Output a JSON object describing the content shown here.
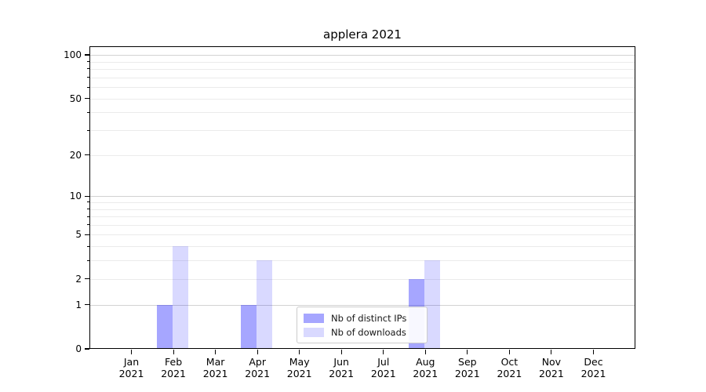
{
  "title": "applera 2021",
  "chart_data": {
    "type": "bar",
    "title": "applera 2021",
    "xlabel": "",
    "ylabel": "",
    "y_scale": "log1p",
    "ylim": [
      0,
      116
    ],
    "year_label": "2021",
    "categories": [
      "Jan",
      "Feb",
      "Mar",
      "Apr",
      "May",
      "Jun",
      "Jul",
      "Aug",
      "Sep",
      "Oct",
      "Nov",
      "Dec"
    ],
    "series": [
      {
        "name": "Nb of distinct IPs",
        "color": "rgba(0,0,255,0.35)",
        "values": [
          0,
          1,
          0,
          1,
          0,
          0,
          0,
          2,
          0,
          0,
          0,
          0
        ]
      },
      {
        "name": "Nb of downloads",
        "color": "rgba(0,0,255,0.15)",
        "values": [
          0,
          4,
          0,
          3,
          0,
          0,
          0,
          3,
          0,
          0,
          0,
          0
        ]
      }
    ],
    "y_ticks": [
      0,
      1,
      2,
      5,
      10,
      20,
      50,
      100
    ],
    "major_gridlines": [
      1,
      10,
      100
    ],
    "minor_gridlines": [
      2,
      3,
      4,
      5,
      6,
      7,
      8,
      9,
      20,
      30,
      40,
      50,
      60,
      70,
      80,
      90
    ],
    "legend_position": "lower center",
    "grid": true
  },
  "colors": {
    "axis": "#000000",
    "major_grid": "#d2d2d2",
    "minor_grid": "#ebebeb",
    "legend_border": "#cccccc",
    "text": "#1a1a1a"
  }
}
